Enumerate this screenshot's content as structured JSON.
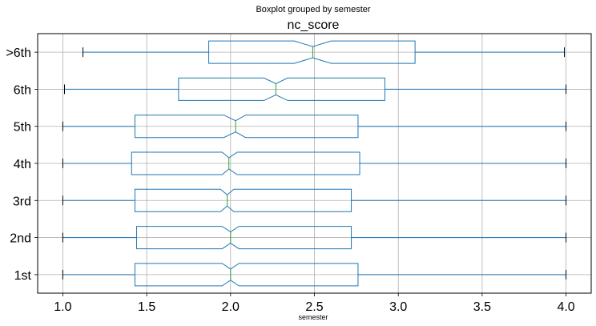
{
  "chart_data": {
    "type": "boxplot",
    "orientation": "horizontal",
    "suptitle": "Boxplot grouped by semester",
    "title": "nc_score",
    "xlabel": "semester",
    "ylabel": "",
    "notched": true,
    "grid": true,
    "xlim": [
      0.85,
      4.15
    ],
    "xticks": [
      1.0,
      1.5,
      2.0,
      2.5,
      3.0,
      3.5,
      4.0
    ],
    "xtick_labels": [
      "1.0",
      "1.5",
      "2.0",
      "2.5",
      "3.0",
      "3.5",
      "4.0"
    ],
    "categories": [
      "1st",
      "2nd",
      "3rd",
      "4th",
      "5th",
      "6th",
      ">6th"
    ],
    "boxes": [
      {
        "label": "1st",
        "whislo": 1.0,
        "q1": 1.43,
        "med": 2.0,
        "q3": 2.76,
        "whishi": 4.0,
        "notch_low": 1.95,
        "notch_high": 2.05
      },
      {
        "label": "2nd",
        "whislo": 1.0,
        "q1": 1.44,
        "med": 2.0,
        "q3": 2.72,
        "whishi": 4.0,
        "notch_low": 1.95,
        "notch_high": 2.05
      },
      {
        "label": "3rd",
        "whislo": 1.0,
        "q1": 1.43,
        "med": 1.98,
        "q3": 2.72,
        "whishi": 4.0,
        "notch_low": 1.94,
        "notch_high": 2.02
      },
      {
        "label": "4th",
        "whislo": 1.0,
        "q1": 1.41,
        "med": 1.99,
        "q3": 2.77,
        "whishi": 4.0,
        "notch_low": 1.95,
        "notch_high": 2.04
      },
      {
        "label": "5th",
        "whislo": 1.0,
        "q1": 1.43,
        "med": 2.03,
        "q3": 2.76,
        "whishi": 4.0,
        "notch_low": 1.96,
        "notch_high": 2.09
      },
      {
        "label": "6th",
        "whislo": 1.01,
        "q1": 1.69,
        "med": 2.27,
        "q3": 2.92,
        "whishi": 4.0,
        "notch_low": 2.2,
        "notch_high": 2.34
      },
      {
        "label": ">6th",
        "whislo": 1.12,
        "q1": 1.87,
        "med": 2.49,
        "q3": 3.1,
        "whishi": 3.99,
        "notch_low": 2.38,
        "notch_high": 2.6
      }
    ],
    "colors": {
      "box": "#1f77b4",
      "median": "#2ca02c",
      "grid": "#b0b0b0",
      "axes": "#000000"
    }
  }
}
